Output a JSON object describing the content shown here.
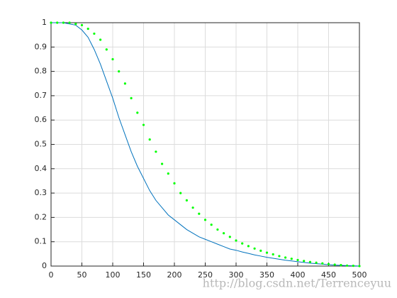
{
  "chart_data": {
    "type": "line",
    "watermark": "http://blog.csdn.net/Terrenceyuu",
    "x": [
      0,
      10,
      20,
      30,
      40,
      50,
      60,
      70,
      80,
      90,
      100,
      110,
      120,
      130,
      140,
      150,
      160,
      170,
      180,
      190,
      200,
      210,
      220,
      230,
      240,
      250,
      260,
      270,
      280,
      290,
      300,
      310,
      320,
      330,
      340,
      350,
      360,
      370,
      380,
      390,
      400,
      410,
      420,
      430,
      440,
      450,
      460,
      470,
      480,
      490,
      500
    ],
    "series": [
      {
        "color": "#0072bd",
        "line_style": "solid",
        "values": [
          1,
          1,
          1,
          0.995,
          0.99,
          0.97,
          0.94,
          0.89,
          0.83,
          0.76,
          0.69,
          0.61,
          0.54,
          0.47,
          0.41,
          0.36,
          0.31,
          0.27,
          0.24,
          0.21,
          0.19,
          0.17,
          0.15,
          0.135,
          0.12,
          0.11,
          0.1,
          0.09,
          0.08,
          0.07,
          0.065,
          0.058,
          0.052,
          0.046,
          0.041,
          0.036,
          0.032,
          0.028,
          0.024,
          0.021,
          0.018,
          0.015,
          0.012,
          0.01,
          0.008,
          0.006,
          0.004,
          0.003,
          0.002,
          0.001,
          0
        ]
      },
      {
        "color": "#00ff00",
        "line_style": "dotted",
        "values": [
          1,
          1,
          1,
          1,
          0.995,
          0.99,
          0.975,
          0.955,
          0.93,
          0.89,
          0.85,
          0.8,
          0.75,
          0.69,
          0.63,
          0.58,
          0.52,
          0.47,
          0.42,
          0.38,
          0.34,
          0.3,
          0.27,
          0.24,
          0.215,
          0.19,
          0.17,
          0.15,
          0.135,
          0.12,
          0.105,
          0.093,
          0.082,
          0.072,
          0.063,
          0.055,
          0.048,
          0.041,
          0.035,
          0.03,
          0.025,
          0.021,
          0.017,
          0.014,
          0.011,
          0.008,
          0.006,
          0.004,
          0.002,
          0.001,
          0
        ]
      }
    ],
    "xlim": [
      0,
      500
    ],
    "xticks": [
      0,
      50,
      100,
      150,
      200,
      250,
      300,
      350,
      400,
      450,
      500
    ],
    "ylim": [
      0,
      1
    ],
    "yticks": [
      0,
      0.1,
      0.2,
      0.3,
      0.4,
      0.5,
      0.6,
      0.7,
      0.8,
      0.9,
      1
    ],
    "grid": true
  }
}
